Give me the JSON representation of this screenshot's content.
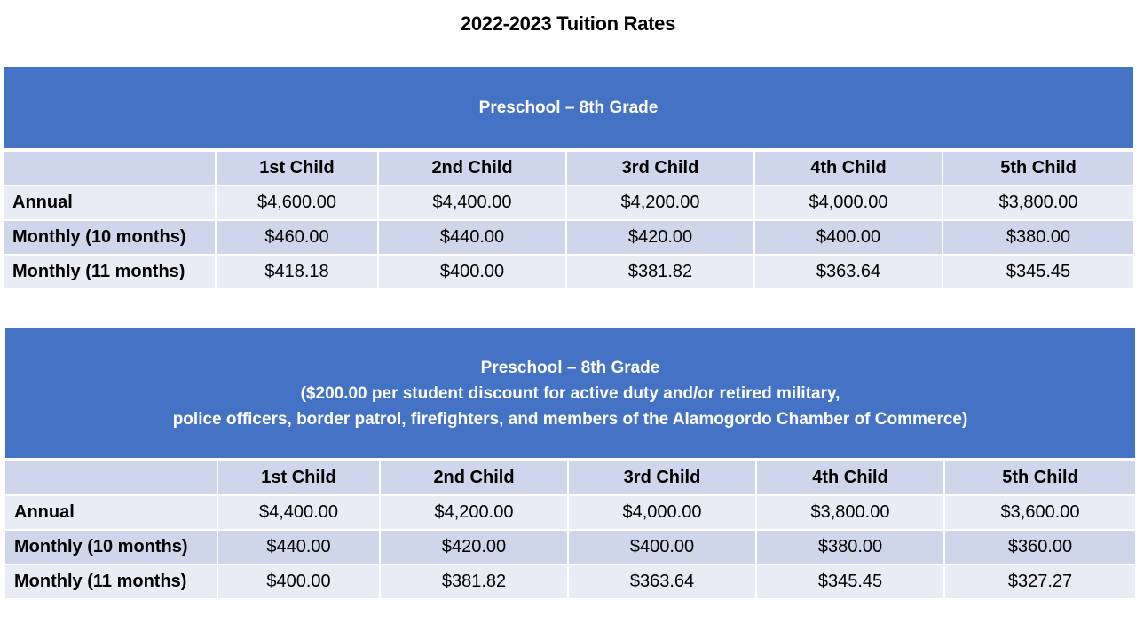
{
  "title": "2022-2023 Tuition Rates",
  "columns": [
    "",
    "1st Child",
    "2nd Child",
    "3rd Child",
    "4th Child",
    "5th Child"
  ],
  "tables": [
    {
      "heading_lines": [
        "Preschool – 8th Grade"
      ],
      "rows": [
        {
          "label": "Annual",
          "values": [
            "$4,600.00",
            "$4,400.00",
            "$4,200.00",
            "$4,000.00",
            "$3,800.00"
          ]
        },
        {
          "label": "Monthly (10 months)",
          "values": [
            "$460.00",
            "$440.00",
            "$420.00",
            "$400.00",
            "$380.00"
          ]
        },
        {
          "label": "Monthly (11 months)",
          "values": [
            "$418.18",
            "$400.00",
            "$381.82",
            "$363.64",
            "$345.45"
          ]
        }
      ]
    },
    {
      "heading_lines": [
        "Preschool – 8th Grade",
        "($200.00 per student discount for active duty and/or retired military,",
        "police officers, border patrol, firefighters, and members of the Alamogordo Chamber of Commerce)"
      ],
      "rows": [
        {
          "label": "Annual",
          "values": [
            "$4,400.00",
            "$4,200.00",
            "$4,000.00",
            "$3,800.00",
            "$3,600.00"
          ]
        },
        {
          "label": "Monthly (10 months)",
          "values": [
            "$440.00",
            "$420.00",
            "$400.00",
            "$380.00",
            "$360.00"
          ]
        },
        {
          "label": "Monthly (11 months)",
          "values": [
            "$400.00",
            "$381.82",
            "$363.64",
            "$345.45",
            "$327.27"
          ]
        }
      ]
    }
  ],
  "colors": {
    "banner": "#4472c4",
    "row_dark": "#cfd5ea",
    "row_light": "#e9ebf5"
  }
}
